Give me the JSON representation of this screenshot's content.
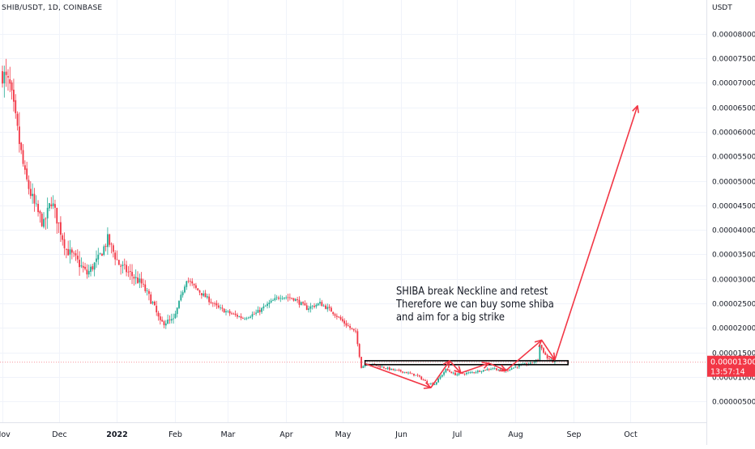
{
  "header": {
    "symbol": "SHIB/USDT, 1D, COINBASE"
  },
  "price_axis": {
    "unit": "USDT"
  },
  "annotation": {
    "lines": [
      "SHIBA break Neckline and retest",
      "Therefore we can buy some shiba",
      "and aim for a big strike"
    ]
  },
  "last_price": {
    "price": "0.00001300",
    "countdown": "13:57:14",
    "value": 1.3e-05,
    "color": "#f23645"
  },
  "colors": {
    "up": "#22ab94",
    "down": "#f23645",
    "up_body": "#089981",
    "arrows": "#f23645",
    "neckline": "#000000",
    "grid": "#f0f3fa",
    "axis_text": "#131722"
  },
  "chart_data": {
    "type": "candlestick",
    "title": "SHIB/USDT, 1D, COINBASE",
    "ylabel": "USDT",
    "ylim": [
      0,
      8.5e-05
    ],
    "y_ticks": [
      {
        "value": 5e-06,
        "label": "0.00000500"
      },
      {
        "value": 1e-05,
        "label": "0.00001000"
      },
      {
        "value": 1.5e-05,
        "label": "0.00001500"
      },
      {
        "value": 2e-05,
        "label": "0.00002000"
      },
      {
        "value": 2.5e-05,
        "label": "0.00002500"
      },
      {
        "value": 3e-05,
        "label": "0.00003000"
      },
      {
        "value": 3.5e-05,
        "label": "0.00003500"
      },
      {
        "value": 4e-05,
        "label": "0.00004000"
      },
      {
        "value": 4.5e-05,
        "label": "0.00004500"
      },
      {
        "value": 5e-05,
        "label": "0.00005000"
      },
      {
        "value": 5.5e-05,
        "label": "0.00005500"
      },
      {
        "value": 6e-05,
        "label": "0.00006000"
      },
      {
        "value": 6.5e-05,
        "label": "0.00006500"
      },
      {
        "value": 7e-05,
        "label": "0.00007000"
      },
      {
        "value": 7.5e-05,
        "label": "0.00007500"
      },
      {
        "value": 8e-05,
        "label": "0.00008000"
      }
    ],
    "x_ticks": [
      {
        "date": "2021-11-01",
        "label": "Nov",
        "bold": false
      },
      {
        "date": "2021-12-01",
        "label": "Dec",
        "bold": false
      },
      {
        "date": "2022-01-01",
        "label": "2022",
        "bold": true
      },
      {
        "date": "2022-02-01",
        "label": "Feb",
        "bold": false
      },
      {
        "date": "2022-03-01",
        "label": "Mar",
        "bold": false
      },
      {
        "date": "2022-04-01",
        "label": "Apr",
        "bold": false
      },
      {
        "date": "2022-05-01",
        "label": "May",
        "bold": false
      },
      {
        "date": "2022-06-01",
        "label": "Jun",
        "bold": false
      },
      {
        "date": "2022-07-01",
        "label": "Jul",
        "bold": false
      },
      {
        "date": "2022-08-01",
        "label": "Aug",
        "bold": false
      },
      {
        "date": "2022-09-01",
        "label": "Sep",
        "bold": false
      },
      {
        "date": "2022-10-01",
        "label": "Oct",
        "bold": false
      }
    ],
    "x_range": [
      "2021-11-01",
      "2022-10-27"
    ],
    "close_path": [
      [
        "2021-11-01",
        7.2e-05
      ],
      [
        "2021-11-05",
        6.9e-05
      ],
      [
        "2021-11-09",
        6e-05
      ],
      [
        "2021-11-13",
        5.1e-05
      ],
      [
        "2021-11-18",
        4.5e-05
      ],
      [
        "2021-11-23",
        4.1e-05
      ],
      [
        "2021-11-27",
        4.6e-05
      ],
      [
        "2021-12-01",
        4.1e-05
      ],
      [
        "2021-12-05",
        3.6e-05
      ],
      [
        "2021-12-10",
        3.4e-05
      ],
      [
        "2021-12-16",
        3.1e-05
      ],
      [
        "2021-12-22",
        3.4e-05
      ],
      [
        "2021-12-27",
        3.8e-05
      ],
      [
        "2022-01-02",
        3.3e-05
      ],
      [
        "2022-01-08",
        3.1e-05
      ],
      [
        "2022-01-14",
        2.9e-05
      ],
      [
        "2022-01-20",
        2.5e-05
      ],
      [
        "2022-01-24",
        2.1e-05
      ],
      [
        "2022-01-31",
        2.15e-05
      ],
      [
        "2022-02-07",
        3e-05
      ],
      [
        "2022-02-12",
        2.8e-05
      ],
      [
        "2022-02-18",
        2.6e-05
      ],
      [
        "2022-02-24",
        2.4e-05
      ],
      [
        "2022-03-02",
        2.3e-05
      ],
      [
        "2022-03-09",
        2.2e-05
      ],
      [
        "2022-03-16",
        2.3e-05
      ],
      [
        "2022-03-23",
        2.5e-05
      ],
      [
        "2022-03-29",
        2.65e-05
      ],
      [
        "2022-04-05",
        2.6e-05
      ],
      [
        "2022-04-12",
        2.4e-05
      ],
      [
        "2022-04-19",
        2.5e-05
      ],
      [
        "2022-04-25",
        2.35e-05
      ],
      [
        "2022-05-02",
        2.1e-05
      ],
      [
        "2022-05-08",
        1.9e-05
      ],
      [
        "2022-05-11",
        1.2e-05
      ],
      [
        "2022-05-14",
        1.28e-05
      ],
      [
        "2022-05-20",
        1.22e-05
      ],
      [
        "2022-05-27",
        1.15e-05
      ],
      [
        "2022-06-03",
        1.1e-05
      ],
      [
        "2022-06-10",
        1.02e-05
      ],
      [
        "2022-06-15",
        8.8e-06
      ],
      [
        "2022-06-19",
        8.5e-06
      ],
      [
        "2022-06-25",
        1.15e-05
      ],
      [
        "2022-06-30",
        1.05e-05
      ],
      [
        "2022-07-07",
        1.08e-05
      ],
      [
        "2022-07-14",
        1.13e-05
      ],
      [
        "2022-07-20",
        1.18e-05
      ],
      [
        "2022-07-26",
        1.12e-05
      ],
      [
        "2022-08-02",
        1.22e-05
      ],
      [
        "2022-08-09",
        1.28e-05
      ],
      [
        "2022-08-13",
        1.35e-05
      ],
      [
        "2022-08-14",
        1.65e-05
      ],
      [
        "2022-08-18",
        1.38e-05
      ],
      [
        "2022-08-22",
        1.3e-05
      ]
    ],
    "neckline": {
      "from": "2022-05-13",
      "to": "2022-08-29",
      "price_low": 1.25e-05,
      "price_high": 1.33e-05
    },
    "arrows": [
      [
        [
          "2022-05-13",
          1.27e-05
        ],
        [
          "2022-06-17",
          7.8e-06
        ]
      ],
      [
        [
          "2022-06-17",
          7.8e-06
        ],
        [
          "2022-06-27",
          1.33e-05
        ]
      ],
      [
        [
          "2022-06-27",
          1.33e-05
        ],
        [
          "2022-07-03",
          1.08e-05
        ]
      ],
      [
        [
          "2022-07-03",
          1.08e-05
        ],
        [
          "2022-07-18",
          1.28e-05
        ]
      ],
      [
        [
          "2022-07-18",
          1.28e-05
        ],
        [
          "2022-07-27",
          1.13e-05
        ]
      ],
      [
        [
          "2022-07-27",
          1.13e-05
        ],
        [
          "2022-08-15",
          1.75e-05
        ]
      ],
      [
        [
          "2022-08-15",
          1.75e-05
        ],
        [
          "2022-08-22",
          1.35e-05
        ]
      ],
      [
        [
          "2022-08-22",
          1.35e-05
        ],
        [
          "2022-10-05",
          6.53e-05
        ]
      ]
    ]
  }
}
